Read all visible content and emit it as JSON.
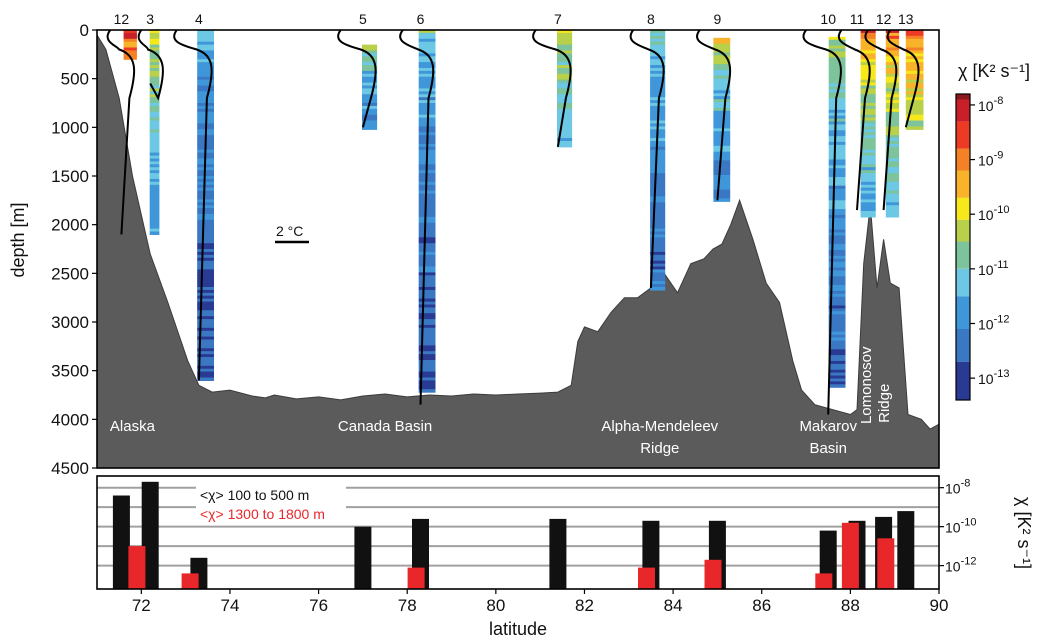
{
  "chart_data": [
    {
      "id": "profiles",
      "type": "area",
      "ylabel": "depth  [m]",
      "yticks": [
        0,
        500,
        1000,
        1500,
        2000,
        2500,
        3000,
        3500,
        4000,
        4500
      ],
      "ylim": [
        4500,
        0
      ],
      "xlim": [
        71,
        90
      ],
      "scale_bar_label": "2 °C",
      "station_labels": [
        "12",
        "3",
        "4",
        "5",
        "6",
        "7",
        "8",
        "9",
        "10",
        "11",
        "12",
        "13"
      ],
      "station_positions": [
        71.55,
        72.2,
        73.3,
        77.0,
        78.3,
        81.4,
        83.5,
        85.0,
        87.5,
        88.15,
        88.75,
        89.25
      ],
      "region_labels": [
        {
          "text": [
            "Alaska"
          ],
          "lat": 71.8,
          "depth": 4120
        },
        {
          "text": [
            "Canada Basin"
          ],
          "lat": 77.5,
          "depth": 4120
        },
        {
          "text": [
            "Alpha-Mendeleev",
            "Ridge"
          ],
          "lat": 83.7,
          "depth": 4120
        },
        {
          "text": [
            "Makarov",
            "Basin"
          ],
          "lat": 87.5,
          "depth": 4120
        },
        {
          "text": [
            "Lomonosov",
            "Ridge"
          ],
          "lat": 88.65,
          "depth": 3650
        }
      ],
      "bathymetry": {
        "lat": [
          71.0,
          71.2,
          71.5,
          71.8,
          72.2,
          72.6,
          72.9,
          73.05,
          73.3,
          73.6,
          74.0,
          74.5,
          74.8,
          75.0,
          75.5,
          76.0,
          76.5,
          77.0,
          77.5,
          78.0,
          78.5,
          79.0,
          79.5,
          80.0,
          80.5,
          81.0,
          81.4,
          81.7,
          81.85,
          82.0,
          82.3,
          82.6,
          82.9,
          83.2,
          83.5,
          83.8,
          84.1,
          84.4,
          84.7,
          84.9,
          85.1,
          85.3,
          85.5,
          85.8,
          86.1,
          86.4,
          86.7,
          86.9,
          87.2,
          87.6,
          88.0,
          88.15,
          88.3,
          88.45,
          88.6,
          88.75,
          88.9,
          89.1,
          89.3,
          89.6,
          89.8,
          90.0
        ],
        "depth": [
          50,
          200,
          700,
          1500,
          2300,
          2800,
          3200,
          3400,
          3650,
          3720,
          3700,
          3760,
          3780,
          3750,
          3790,
          3770,
          3800,
          3760,
          3740,
          3770,
          3750,
          3760,
          3740,
          3750,
          3740,
          3730,
          3720,
          3650,
          3200,
          3050,
          3100,
          2900,
          2750,
          2750,
          2650,
          2500,
          2700,
          2400,
          2350,
          2250,
          2200,
          2000,
          1750,
          2150,
          2600,
          2800,
          3400,
          3700,
          3850,
          3900,
          3950,
          3900,
          2400,
          1800,
          2650,
          2150,
          2600,
          2650,
          3950,
          4000,
          4100,
          4050
        ]
      },
      "chi_scale": {
        "label": "χ  [K² s⁻¹]",
        "ticks": [
          "10-8",
          "10-9",
          "10-10",
          "10-11",
          "10-12",
          "10-13"
        ],
        "log_min": -13.4,
        "log_max": -7.8
      }
    },
    {
      "id": "mean_chi",
      "type": "bar",
      "xlabel": "latitude",
      "ylabel": "χ  [K² s⁻¹]",
      "xlim": [
        71,
        90
      ],
      "xticks": [
        72,
        74,
        76,
        78,
        80,
        82,
        84,
        86,
        88,
        90
      ],
      "ylim": [
        -13.2,
        -7.4
      ],
      "yscale": "log",
      "ytick_labels": [
        "10-8",
        "10-10",
        "10-12"
      ],
      "gridlines_log": [
        -8,
        -9,
        -10,
        -11,
        -12
      ],
      "legend": [
        {
          "text": "<χ> 100 to 500 m",
          "color": "#111111"
        },
        {
          "text": "<χ> 1300 to 1800 m",
          "color": "#e8272b"
        }
      ],
      "series": [
        {
          "name": "<χ> 100 to 500 m",
          "color": "#111111",
          "x": [
            71.55,
            72.2,
            73.3,
            77.0,
            78.3,
            81.4,
            83.5,
            85.0,
            87.5,
            88.15,
            88.75,
            89.25
          ],
          "values": [
            -8.4,
            -7.7,
            -11.6,
            -10.0,
            -9.6,
            -9.6,
            -9.7,
            -9.7,
            -10.2,
            -9.7,
            -9.5,
            -9.2
          ]
        },
        {
          "name": "<χ> 1300 to 1800 m",
          "color": "#e8272b",
          "x": [
            71.9,
            73.1,
            78.2,
            83.4,
            84.9,
            87.4,
            88.0,
            88.8
          ],
          "values": [
            -11.0,
            -12.4,
            -12.1,
            -12.1,
            -11.7,
            -12.4,
            -9.8,
            -10.6
          ]
        }
      ]
    }
  ]
}
